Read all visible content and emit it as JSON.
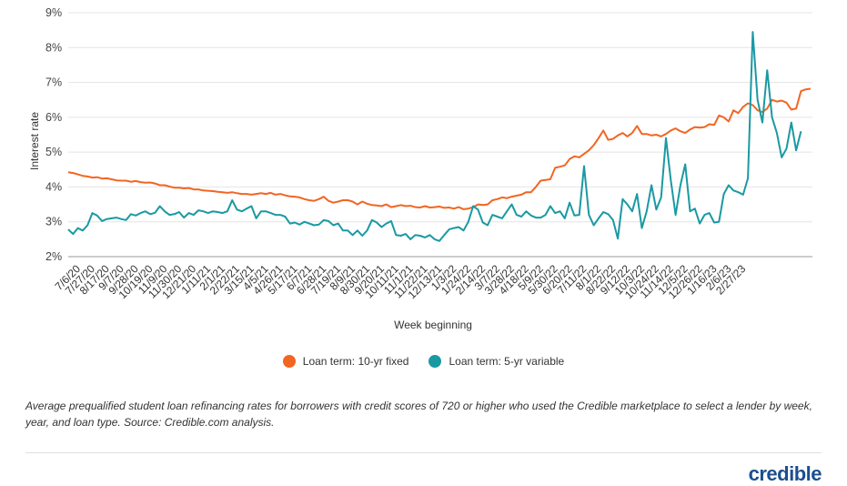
{
  "chart_data": {
    "type": "line",
    "ylabel": "Interest rate",
    "xlabel": "Week beginning",
    "ylim": [
      2,
      9
    ],
    "yticks": [
      "2%",
      "3%",
      "4%",
      "5%",
      "6%",
      "7%",
      "8%",
      "9%"
    ],
    "grid": true,
    "legend_position": "bottom-center",
    "x_tick_labels": [
      "7/6/20",
      "7/27/20",
      "8/17/20",
      "9/7/20",
      "9/28/20",
      "10/19/20",
      "11/9/20",
      "11/30/20",
      "12/21/20",
      "1/11/21",
      "2/1/21",
      "2/22/21",
      "3/15/21",
      "4/5/21",
      "4/26/21",
      "5/17/21",
      "6/7/21",
      "6/28/21",
      "7/19/21",
      "8/9/21",
      "8/30/21",
      "9/20/21",
      "10/11/21",
      "11/1/21",
      "11/22/21",
      "12/13/21",
      "1/3/22",
      "1/24/22",
      "2/14/22",
      "3/7/22",
      "3/28/22",
      "4/18/22",
      "5/9/22",
      "5/30/22",
      "6/20/22",
      "7/11/22",
      "8/1/22",
      "8/22/22",
      "9/12/22",
      "10/3/22",
      "10/24/22",
      "11/14/22",
      "12/5/22",
      "12/26/22",
      "1/16/23",
      "2/6/23",
      "2/27/23"
    ],
    "series": [
      {
        "name": "Loan term: 10-yr fixed",
        "color": "#f26522",
        "values": [
          4.42,
          4.4,
          4.36,
          4.32,
          4.3,
          4.27,
          4.28,
          4.24,
          4.25,
          4.22,
          4.19,
          4.18,
          4.18,
          4.15,
          4.17,
          4.14,
          4.12,
          4.13,
          4.1,
          4.05,
          4.05,
          4.01,
          3.98,
          3.98,
          3.96,
          3.97,
          3.93,
          3.93,
          3.9,
          3.89,
          3.88,
          3.86,
          3.85,
          3.83,
          3.85,
          3.82,
          3.8,
          3.8,
          3.78,
          3.8,
          3.82,
          3.8,
          3.83,
          3.78,
          3.8,
          3.76,
          3.73,
          3.72,
          3.7,
          3.65,
          3.62,
          3.6,
          3.65,
          3.72,
          3.6,
          3.55,
          3.58,
          3.62,
          3.62,
          3.58,
          3.5,
          3.58,
          3.52,
          3.48,
          3.47,
          3.45,
          3.5,
          3.42,
          3.45,
          3.48,
          3.45,
          3.46,
          3.42,
          3.41,
          3.45,
          3.41,
          3.42,
          3.44,
          3.4,
          3.41,
          3.38,
          3.42,
          3.36,
          3.38,
          3.42,
          3.5,
          3.48,
          3.5,
          3.62,
          3.65,
          3.7,
          3.68,
          3.72,
          3.75,
          3.78,
          3.85,
          3.85,
          4.0,
          4.18,
          4.2,
          4.22,
          4.55,
          4.58,
          4.62,
          4.8,
          4.88,
          4.85,
          4.95,
          5.05,
          5.2,
          5.4,
          5.62,
          5.35,
          5.38,
          5.48,
          5.55,
          5.45,
          5.55,
          5.75,
          5.52,
          5.52,
          5.48,
          5.5,
          5.45,
          5.52,
          5.62,
          5.68,
          5.6,
          5.55,
          5.65,
          5.72,
          5.7,
          5.72,
          5.8,
          5.78,
          6.05,
          6.0,
          5.88,
          6.2,
          6.12,
          6.3,
          6.4,
          6.35,
          6.2,
          6.15,
          6.25,
          6.5,
          6.45,
          6.48,
          6.42,
          6.22,
          6.25,
          6.75,
          6.8,
          6.82
        ]
      },
      {
        "name": "Loan term: 5-yr variable",
        "color": "#1a99a3",
        "values": [
          2.78,
          2.65,
          2.82,
          2.75,
          2.9,
          3.25,
          3.18,
          3.02,
          3.08,
          3.1,
          3.12,
          3.08,
          3.05,
          3.22,
          3.18,
          3.25,
          3.3,
          3.22,
          3.26,
          3.45,
          3.3,
          3.2,
          3.22,
          3.28,
          3.12,
          3.25,
          3.2,
          3.33,
          3.3,
          3.25,
          3.3,
          3.28,
          3.25,
          3.3,
          3.62,
          3.35,
          3.3,
          3.38,
          3.45,
          3.1,
          3.3,
          3.3,
          3.25,
          3.2,
          3.2,
          3.15,
          2.95,
          2.98,
          2.92,
          3.0,
          2.95,
          2.9,
          2.92,
          3.05,
          3.02,
          2.9,
          2.95,
          2.75,
          2.75,
          2.62,
          2.75,
          2.6,
          2.75,
          3.05,
          2.98,
          2.85,
          2.95,
          3.02,
          2.62,
          2.6,
          2.65,
          2.5,
          2.62,
          2.6,
          2.55,
          2.62,
          2.5,
          2.45,
          2.62,
          2.78,
          2.82,
          2.85,
          2.75,
          3.0,
          3.45,
          3.35,
          2.98,
          2.9,
          3.2,
          3.15,
          3.1,
          3.3,
          3.5,
          3.2,
          3.15,
          3.3,
          3.18,
          3.12,
          3.12,
          3.2,
          3.45,
          3.25,
          3.3,
          3.1,
          3.55,
          3.18,
          3.2,
          4.6,
          3.2,
          2.9,
          3.1,
          3.28,
          3.22,
          3.05,
          2.52,
          3.65,
          3.5,
          3.3,
          3.8,
          2.82,
          3.3,
          4.05,
          3.35,
          3.7,
          5.4,
          4.2,
          3.2,
          4.05,
          4.65,
          3.3,
          3.38,
          2.95,
          3.2,
          3.25,
          2.98,
          3.0,
          3.8,
          4.05,
          3.9,
          3.85,
          3.78,
          4.25,
          8.45,
          6.5,
          5.85,
          7.35,
          6.0,
          5.55,
          4.85,
          5.1,
          5.85,
          5.05,
          5.6
        ]
      }
    ]
  },
  "legend": {
    "items": [
      {
        "label": "Loan term: 10-yr fixed",
        "color": "#f26522"
      },
      {
        "label": "Loan term: 5-yr variable",
        "color": "#1a99a3"
      }
    ]
  },
  "caption": "Average prequalified student loan refinancing rates for borrowers with credit scores of 720 or higher who used the Credible marketplace to select a lender by week, year, and loan type. Source: Credible.com analysis.",
  "brand": "credible"
}
